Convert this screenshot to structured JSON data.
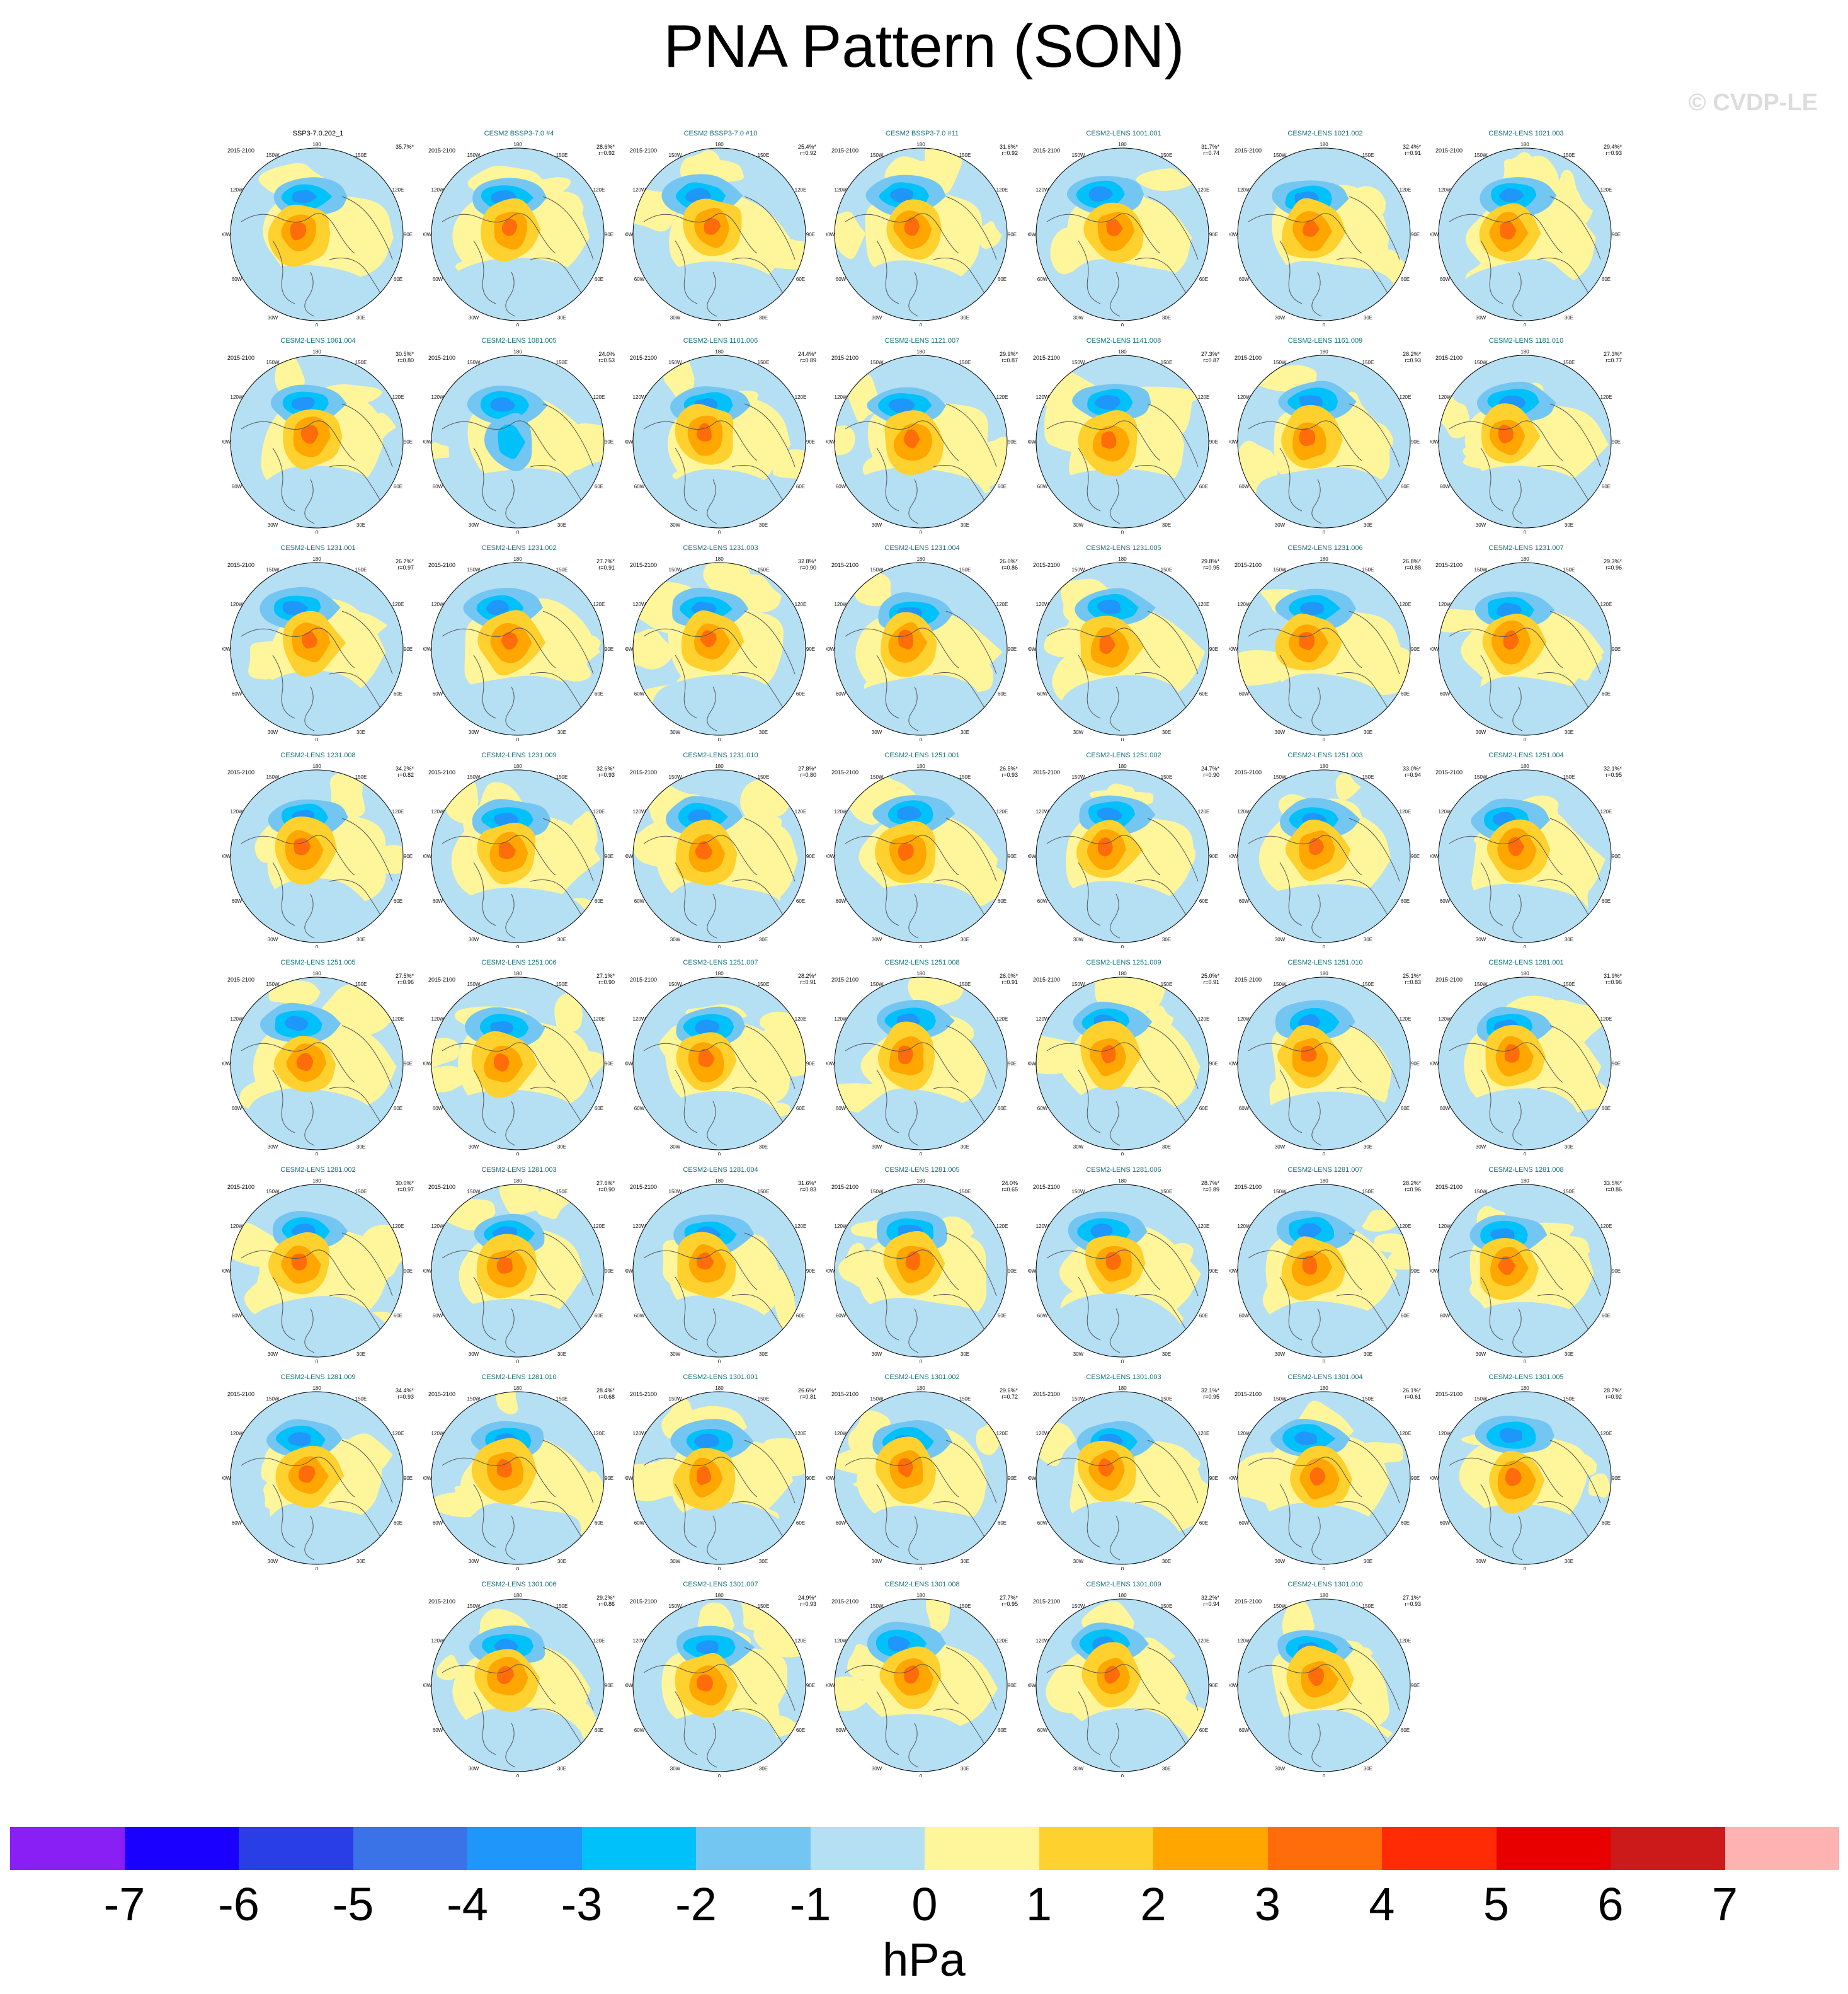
{
  "title": "PNA Pattern (SON)",
  "watermark": "© CVDP-LE",
  "colorbar": {
    "units": "hPa",
    "ticks": [
      "-7",
      "-6",
      "-5",
      "-4",
      "-3",
      "-2",
      "-1",
      "0",
      "1",
      "2",
      "3",
      "4",
      "5",
      "6",
      "7"
    ],
    "colors": [
      "#8a1ff5",
      "#1a00ff",
      "#2a3ee6",
      "#3a72e8",
      "#1e96fa",
      "#00c1fa",
      "#74c6f2",
      "#b5dff3",
      "#fff59a",
      "#ffd12e",
      "#ffa600",
      "#ff6c0a",
      "#ff2b05",
      "#e80000",
      "#cc1a1a",
      "#ffb2b2"
    ]
  },
  "chart_data": {
    "type": "heatmap",
    "description_kind": "polar stereographic sea level pressure regression maps",
    "projection_labels": [
      "180",
      "150W",
      "150E",
      "120W",
      "120E",
      "90W",
      "90E",
      "60W",
      "60E",
      "30W",
      "30E",
      "0"
    ],
    "period": "2015-2100",
    "color_range": [
      -7,
      7
    ],
    "units": "hPa",
    "panels": [
      {
        "name": "SSP3-7.0.202_1",
        "pct": "35.7%*",
        "r": "",
        "obs": true
      },
      {
        "name": "CESM2 BSSP3-7.0 #4",
        "pct": "28.6%*",
        "r": "r=0.92"
      },
      {
        "name": "CESM2 BSSP3-7.0 #10",
        "pct": "25.4%*",
        "r": "r=0.92"
      },
      {
        "name": "CESM2 BSSP3-7.0 #11",
        "pct": "31.6%*",
        "r": "r=0.92"
      },
      {
        "name": "CESM2-LENS 1001.001",
        "pct": "31.7%*",
        "r": "r=0.74"
      },
      {
        "name": "CESM2-LENS 1021.002",
        "pct": "32.4%*",
        "r": "r=0.91"
      },
      {
        "name": "CESM2-LENS 1021.003",
        "pct": "29.4%*",
        "r": "r=0.93"
      },
      {
        "name": "CESM2-LENS 1061.004",
        "pct": "30.5%*",
        "r": "r=0.80"
      },
      {
        "name": "CESM2-LENS 1081.005",
        "pct": "24.0%",
        "r": "r=0.53"
      },
      {
        "name": "CESM2-LENS 1101.006",
        "pct": "24.4%*",
        "r": "r=0.89"
      },
      {
        "name": "CESM2-LENS 1121.007",
        "pct": "29.9%*",
        "r": "r=0.87"
      },
      {
        "name": "CESM2-LENS 1141.008",
        "pct": "27.3%*",
        "r": "r=0.87"
      },
      {
        "name": "CESM2-LENS 1161.009",
        "pct": "28.2%*",
        "r": "r=0.93"
      },
      {
        "name": "CESM2-LENS 1181.010",
        "pct": "27.3%*",
        "r": "r=0.77"
      },
      {
        "name": "CESM2-LENS 1231.001",
        "pct": "26.7%*",
        "r": "r=0.97"
      },
      {
        "name": "CESM2-LENS 1231.002",
        "pct": "27.7%*",
        "r": "r=0.91"
      },
      {
        "name": "CESM2-LENS 1231.003",
        "pct": "32.8%*",
        "r": "r=0.90"
      },
      {
        "name": "CESM2-LENS 1231.004",
        "pct": "26.0%*",
        "r": "r=0.86"
      },
      {
        "name": "CESM2-LENS 1231.005",
        "pct": "29.8%*",
        "r": "r=0.95"
      },
      {
        "name": "CESM2-LENS 1231.006",
        "pct": "26.8%*",
        "r": "r=0.88"
      },
      {
        "name": "CESM2-LENS 1231.007",
        "pct": "29.3%*",
        "r": "r=0.96"
      },
      {
        "name": "CESM2-LENS 1231.008",
        "pct": "34.2%*",
        "r": "r=0.82"
      },
      {
        "name": "CESM2-LENS 1231.009",
        "pct": "32.6%*",
        "r": "r=0.93"
      },
      {
        "name": "CESM2-LENS 1231.010",
        "pct": "27.8%*",
        "r": "r=0.80"
      },
      {
        "name": "CESM2-LENS 1251.001",
        "pct": "26.5%*",
        "r": "r=0.93"
      },
      {
        "name": "CESM2-LENS 1251.002",
        "pct": "24.7%*",
        "r": "r=0.90"
      },
      {
        "name": "CESM2-LENS 1251.003",
        "pct": "33.0%*",
        "r": "r=0.94"
      },
      {
        "name": "CESM2-LENS 1251.004",
        "pct": "32.1%*",
        "r": "r=0.95"
      },
      {
        "name": "CESM2-LENS 1251.005",
        "pct": "27.5%*",
        "r": "r=0.96"
      },
      {
        "name": "CESM2-LENS 1251.006",
        "pct": "27.1%*",
        "r": "r=0.90"
      },
      {
        "name": "CESM2-LENS 1251.007",
        "pct": "28.2%*",
        "r": "r=0.91"
      },
      {
        "name": "CESM2-LENS 1251.008",
        "pct": "26.0%*",
        "r": "r=0.91"
      },
      {
        "name": "CESM2-LENS 1251.009",
        "pct": "25.0%*",
        "r": "r=0.91"
      },
      {
        "name": "CESM2-LENS 1251.010",
        "pct": "25.1%*",
        "r": "r=0.83"
      },
      {
        "name": "CESM2-LENS 1281.001",
        "pct": "31.9%*",
        "r": "r=0.96"
      },
      {
        "name": "CESM2-LENS 1281.002",
        "pct": "30.0%*",
        "r": "r=0.97"
      },
      {
        "name": "CESM2-LENS 1281.003",
        "pct": "27.6%*",
        "r": "r=0.90"
      },
      {
        "name": "CESM2-LENS 1281.004",
        "pct": "31.6%*",
        "r": "r=0.83"
      },
      {
        "name": "CESM2-LENS 1281.005",
        "pct": "24.0%",
        "r": "r=0.65"
      },
      {
        "name": "CESM2-LENS 1281.006",
        "pct": "28.7%*",
        "r": "r=0.89"
      },
      {
        "name": "CESM2-LENS 1281.007",
        "pct": "28.2%*",
        "r": "r=0.96"
      },
      {
        "name": "CESM2-LENS 1281.008",
        "pct": "33.5%*",
        "r": "r=0.86"
      },
      {
        "name": "CESM2-LENS 1281.009",
        "pct": "34.4%*",
        "r": "r=0.93"
      },
      {
        "name": "CESM2-LENS 1281.010",
        "pct": "28.4%*",
        "r": "r=0.68"
      },
      {
        "name": "CESM2-LENS 1301.001",
        "pct": "26.6%*",
        "r": "r=0.81"
      },
      {
        "name": "CESM2-LENS 1301.002",
        "pct": "29.6%*",
        "r": "r=0.72"
      },
      {
        "name": "CESM2-LENS 1301.003",
        "pct": "32.1%*",
        "r": "r=0.95"
      },
      {
        "name": "CESM2-LENS 1301.004",
        "pct": "26.1%*",
        "r": "r=0.61"
      },
      {
        "name": "CESM2-LENS 1301.005",
        "pct": "28.7%*",
        "r": "r=0.92"
      },
      {
        "name": "CESM2-LENS 1301.006",
        "pct": "29.2%*",
        "r": "r=0.86"
      },
      {
        "name": "CESM2-LENS 1301.007",
        "pct": "24.9%*",
        "r": "r=0.93"
      },
      {
        "name": "CESM2-LENS 1301.008",
        "pct": "27.7%*",
        "r": "r=0.95"
      },
      {
        "name": "CESM2-LENS 1301.009",
        "pct": "32.2%*",
        "r": "r=0.94"
      },
      {
        "name": "CESM2-LENS 1301.010",
        "pct": "27.1%*",
        "r": "r=0.93"
      }
    ]
  }
}
